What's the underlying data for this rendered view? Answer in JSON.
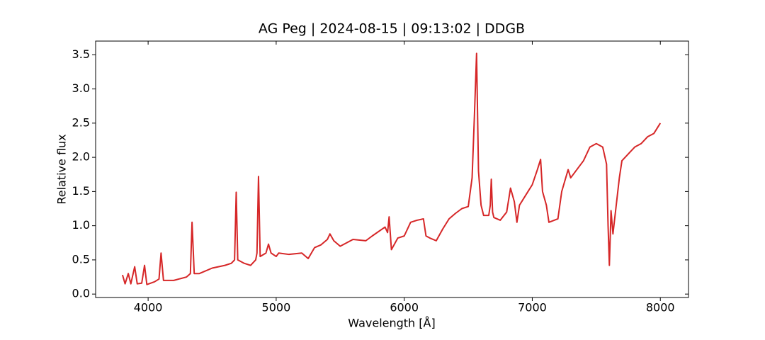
{
  "chart_data": {
    "type": "line",
    "title": "AG Peg | 2024-08-15 | 09:13:02 | DDGB",
    "xlabel": "Wavelength [Å]",
    "ylabel": "Relative flux",
    "x": [
      3800,
      3820,
      3845,
      3865,
      3895,
      3915,
      3950,
      3972,
      3990,
      4050,
      4085,
      4101,
      4120,
      4200,
      4300,
      4330,
      4343,
      4360,
      4400,
      4500,
      4600,
      4650,
      4675,
      4688,
      4700,
      4750,
      4800,
      4840,
      4850,
      4862,
      4875,
      4920,
      4940,
      4960,
      5000,
      5020,
      5100,
      5200,
      5250,
      5300,
      5350,
      5400,
      5420,
      5450,
      5500,
      5600,
      5700,
      5750,
      5850,
      5870,
      5882,
      5900,
      5950,
      6000,
      6050,
      6100,
      6150,
      6170,
      6200,
      6250,
      6300,
      6350,
      6400,
      6450,
      6500,
      6530,
      6548,
      6565,
      6580,
      6600,
      6620,
      6660,
      6672,
      6680,
      6690,
      6700,
      6750,
      6800,
      6830,
      6860,
      6880,
      6900,
      6950,
      7000,
      7040,
      7065,
      7080,
      7110,
      7130,
      7200,
      7230,
      7280,
      7300,
      7400,
      7450,
      7500,
      7550,
      7580,
      7592,
      7602,
      7615,
      7630,
      7680,
      7700,
      7750,
      7800,
      7850,
      7900,
      7950,
      8000
    ],
    "series": [
      {
        "name": "AG Peg",
        "color": "#d62728",
        "values": [
          0.28,
          0.15,
          0.3,
          0.15,
          0.4,
          0.15,
          0.16,
          0.42,
          0.14,
          0.18,
          0.22,
          0.6,
          0.2,
          0.2,
          0.25,
          0.3,
          1.05,
          0.3,
          0.3,
          0.38,
          0.42,
          0.45,
          0.5,
          1.49,
          0.5,
          0.45,
          0.42,
          0.5,
          0.6,
          1.72,
          0.55,
          0.6,
          0.73,
          0.6,
          0.55,
          0.6,
          0.58,
          0.6,
          0.52,
          0.68,
          0.72,
          0.8,
          0.88,
          0.78,
          0.7,
          0.8,
          0.78,
          0.85,
          0.98,
          0.9,
          1.13,
          0.65,
          0.82,
          0.85,
          1.05,
          1.08,
          1.1,
          0.85,
          0.82,
          0.78,
          0.95,
          1.1,
          1.18,
          1.25,
          1.28,
          1.7,
          2.6,
          3.52,
          1.8,
          1.3,
          1.15,
          1.15,
          1.3,
          1.68,
          1.2,
          1.12,
          1.08,
          1.2,
          1.55,
          1.35,
          1.05,
          1.3,
          1.45,
          1.6,
          1.82,
          1.97,
          1.5,
          1.3,
          1.05,
          1.1,
          1.5,
          1.82,
          1.7,
          1.95,
          2.15,
          2.2,
          2.15,
          1.9,
          1.0,
          0.42,
          1.22,
          0.88,
          1.7,
          1.95,
          2.05,
          2.15,
          2.2,
          2.3,
          2.35,
          2.5
        ]
      }
    ],
    "xlim": [
      3590,
      8220
    ],
    "ylim": [
      -0.05,
      3.7
    ],
    "xticks": [
      4000,
      5000,
      6000,
      7000,
      8000
    ],
    "yticks": [
      {
        "value": 0,
        "label": "0.0"
      },
      0.5,
      {
        "value": 1,
        "label": "1.0"
      },
      1.5,
      {
        "value": 2,
        "label": "2.0"
      },
      2.5,
      {
        "value": 3,
        "label": "3.0"
      },
      3.5
    ]
  }
}
